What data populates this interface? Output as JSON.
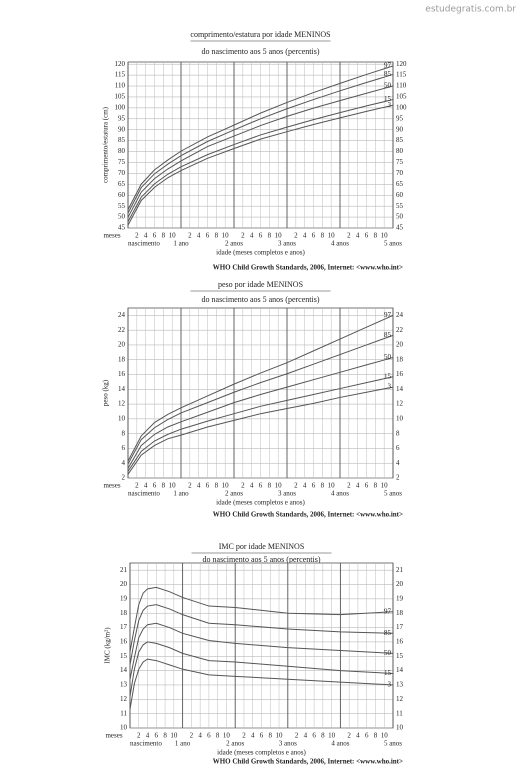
{
  "watermark": "estudegratis.com.br",
  "chart_data": [
    {
      "type": "line",
      "title": "comprimento/estatura por idade MENINOS",
      "subtitle": "do nascimento aos 5 anos (percentis)",
      "y_label": "comprimento/estatura (cm)",
      "x_label": "idade (meses completos e anos)",
      "x_unit_label": "meses",
      "source": "WHO Child Growth Standards, 2006, Internet: <www.who.int>",
      "x": [
        0,
        3,
        6,
        9,
        12,
        18,
        24,
        30,
        36,
        42,
        48,
        54,
        60
      ],
      "series": [
        {
          "name": "97",
          "color": "#555555",
          "values": [
            53.4,
            65.1,
            71.6,
            76.1,
            80.2,
            86.7,
            92.1,
            97.6,
            102.5,
            107.0,
            111.2,
            115.3,
            119.2
          ]
        },
        {
          "name": "85",
          "color": "#555555",
          "values": [
            51.8,
            63.5,
            69.8,
            74.2,
            78.1,
            84.6,
            89.9,
            95.0,
            99.6,
            103.8,
            107.8,
            111.6,
            115.3
          ]
        },
        {
          "name": "50",
          "color": "#555555",
          "values": [
            49.9,
            61.4,
            67.6,
            72.0,
            75.7,
            82.3,
            87.1,
            91.9,
            96.1,
            99.9,
            103.3,
            106.7,
            110.0
          ]
        },
        {
          "name": "15",
          "color": "#555555",
          "values": [
            47.9,
            59.1,
            65.2,
            69.6,
            73.0,
            78.6,
            83.2,
            87.6,
            91.2,
            94.6,
            97.8,
            100.9,
            103.8
          ]
        },
        {
          "name": "3",
          "color": "#555555",
          "values": [
            46.3,
            57.6,
            63.6,
            68.0,
            71.3,
            76.9,
            81.4,
            85.7,
            89.1,
            92.4,
            95.4,
            98.4,
            101.2
          ]
        }
      ],
      "xlim": [
        0,
        60
      ],
      "ylim": [
        45,
        121
      ],
      "yticks": [
        45,
        50,
        55,
        60,
        65,
        70,
        75,
        80,
        85,
        90,
        95,
        100,
        105,
        110,
        115,
        120
      ],
      "xticks": [
        2,
        4,
        6,
        8,
        10,
        {
          "value": 14,
          "label": "2"
        },
        {
          "value": 16,
          "label": "4"
        },
        {
          "value": 18,
          "label": "6"
        },
        {
          "value": 20,
          "label": "8"
        },
        {
          "value": 22,
          "label": "10"
        },
        {
          "value": 26,
          "label": "2"
        },
        {
          "value": 28,
          "label": "4"
        },
        {
          "value": 30,
          "label": "6"
        },
        {
          "value": 32,
          "label": "8"
        },
        {
          "value": 34,
          "label": "10"
        },
        {
          "value": 38,
          "label": "2"
        },
        {
          "value": 40,
          "label": "4"
        },
        {
          "value": 42,
          "label": "6"
        },
        {
          "value": 44,
          "label": "8"
        },
        {
          "value": 46,
          "label": "10"
        },
        {
          "value": 50,
          "label": "2"
        },
        {
          "value": 52,
          "label": "4"
        },
        {
          "value": 54,
          "label": "6"
        },
        {
          "value": 56,
          "label": "8"
        },
        {
          "value": 58,
          "label": "10"
        }
      ],
      "year_ticks": [
        {
          "value": 0,
          "label": "nascimento"
        },
        {
          "value": 12,
          "label": "1 ano"
        },
        {
          "value": 24,
          "label": "2 anos"
        },
        {
          "value": 36,
          "label": "3 anos"
        },
        {
          "value": 48,
          "label": "4 anos"
        },
        {
          "value": 60,
          "label": "5 anos"
        }
      ],
      "grid": true
    },
    {
      "type": "line",
      "title": "peso por idade MENINOS",
      "subtitle": "do nascimento aos 5 anos (percentis)",
      "y_label": "peso (kg)",
      "x_label": "idade (meses completos e anos)",
      "x_unit_label": "meses",
      "source": "WHO Child Growth Standards, 2006, Internet: <www.who.int>",
      "x": [
        0,
        3,
        6,
        9,
        12,
        18,
        24,
        30,
        36,
        42,
        48,
        54,
        60
      ],
      "series": [
        {
          "name": "97",
          "color": "#555555",
          "values": [
            4.3,
            7.7,
            9.5,
            10.6,
            11.5,
            13.1,
            14.7,
            16.2,
            17.6,
            19.2,
            20.8,
            22.4,
            24.0
          ]
        },
        {
          "name": "85",
          "color": "#555555",
          "values": [
            3.9,
            7.2,
            8.8,
            9.9,
            10.8,
            12.2,
            13.6,
            14.9,
            16.1,
            17.4,
            18.7,
            20.0,
            21.3
          ]
        },
        {
          "name": "50",
          "color": "#555555",
          "values": [
            3.3,
            6.4,
            7.9,
            8.9,
            9.6,
            10.9,
            12.2,
            13.3,
            14.3,
            15.3,
            16.3,
            17.3,
            18.3
          ]
        },
        {
          "name": "15",
          "color": "#555555",
          "values": [
            2.9,
            5.6,
            7.0,
            7.9,
            8.6,
            9.7,
            10.7,
            11.7,
            12.5,
            13.3,
            14.1,
            14.9,
            15.7
          ]
        },
        {
          "name": "3",
          "color": "#555555",
          "values": [
            2.5,
            5.1,
            6.4,
            7.3,
            7.8,
            8.9,
            9.8,
            10.7,
            11.4,
            12.1,
            12.9,
            13.6,
            14.3
          ]
        }
      ],
      "xlim": [
        0,
        60
      ],
      "ylim": [
        2,
        25
      ],
      "yticks": [
        2,
        4,
        6,
        8,
        10,
        12,
        14,
        16,
        18,
        20,
        22,
        24
      ],
      "xticks": [
        2,
        4,
        6,
        8,
        10,
        {
          "value": 14,
          "label": "2"
        },
        {
          "value": 16,
          "label": "4"
        },
        {
          "value": 18,
          "label": "6"
        },
        {
          "value": 20,
          "label": "8"
        },
        {
          "value": 22,
          "label": "10"
        },
        {
          "value": 26,
          "label": "2"
        },
        {
          "value": 28,
          "label": "4"
        },
        {
          "value": 30,
          "label": "6"
        },
        {
          "value": 32,
          "label": "8"
        },
        {
          "value": 34,
          "label": "10"
        },
        {
          "value": 38,
          "label": "2"
        },
        {
          "value": 40,
          "label": "4"
        },
        {
          "value": 42,
          "label": "6"
        },
        {
          "value": 44,
          "label": "8"
        },
        {
          "value": 46,
          "label": "10"
        },
        {
          "value": 50,
          "label": "2"
        },
        {
          "value": 52,
          "label": "4"
        },
        {
          "value": 54,
          "label": "6"
        },
        {
          "value": 56,
          "label": "8"
        },
        {
          "value": 58,
          "label": "10"
        }
      ],
      "year_ticks": [
        {
          "value": 0,
          "label": "nascimento"
        },
        {
          "value": 12,
          "label": "1 ano"
        },
        {
          "value": 24,
          "label": "2 anos"
        },
        {
          "value": 36,
          "label": "3 anos"
        },
        {
          "value": 48,
          "label": "4 anos"
        },
        {
          "value": 60,
          "label": "5 anos"
        }
      ],
      "grid": true
    },
    {
      "type": "line",
      "title": "IMC por idade MENINOS",
      "subtitle": "do nascimento aos 5 anos (percentis)",
      "y_label": "IMC (kg/m²)",
      "x_label": "idade (meses completos e anos)",
      "x_unit_label": "meses",
      "source": "WHO Child Growth Standards, 2006, Internet: <www.who.int>",
      "x": [
        0,
        1,
        2,
        3,
        4,
        6,
        9,
        12,
        18,
        24,
        36,
        48,
        60
      ],
      "series": [
        {
          "name": "97",
          "color": "#555555",
          "values": [
            15.3,
            17.0,
            18.6,
            19.4,
            19.7,
            19.8,
            19.5,
            19.1,
            18.5,
            18.4,
            18.0,
            17.9,
            18.1
          ]
        },
        {
          "name": "85",
          "color": "#555555",
          "values": [
            14.4,
            16.1,
            17.5,
            18.2,
            18.5,
            18.6,
            18.3,
            17.9,
            17.3,
            17.2,
            16.9,
            16.7,
            16.6
          ]
        },
        {
          "name": "50",
          "color": "#555555",
          "values": [
            13.4,
            14.9,
            16.3,
            16.9,
            17.2,
            17.3,
            17.0,
            16.6,
            16.1,
            15.9,
            15.6,
            15.4,
            15.2
          ]
        },
        {
          "name": "15",
          "color": "#555555",
          "values": [
            12.2,
            14.1,
            15.3,
            15.8,
            16.0,
            15.9,
            15.6,
            15.2,
            14.7,
            14.6,
            14.3,
            14.0,
            13.8
          ]
        },
        {
          "name": "3",
          "color": "#555555",
          "values": [
            11.3,
            13.1,
            14.1,
            14.6,
            14.8,
            14.7,
            14.4,
            14.1,
            13.7,
            13.6,
            13.4,
            13.2,
            13.0
          ]
        }
      ],
      "xlim": [
        0,
        60
      ],
      "ylim": [
        10,
        21.5
      ],
      "yticks": [
        10,
        11,
        12,
        13,
        14,
        15,
        16,
        17,
        18,
        19,
        20,
        21
      ],
      "xticks": [
        2,
        4,
        6,
        8,
        10,
        {
          "value": 14,
          "label": "2"
        },
        {
          "value": 16,
          "label": "4"
        },
        {
          "value": 18,
          "label": "6"
        },
        {
          "value": 20,
          "label": "8"
        },
        {
          "value": 22,
          "label": "10"
        },
        {
          "value": 26,
          "label": "2"
        },
        {
          "value": 28,
          "label": "4"
        },
        {
          "value": 30,
          "label": "6"
        },
        {
          "value": 32,
          "label": "8"
        },
        {
          "value": 34,
          "label": "10"
        },
        {
          "value": 38,
          "label": "2"
        },
        {
          "value": 40,
          "label": "4"
        },
        {
          "value": 42,
          "label": "6"
        },
        {
          "value": 44,
          "label": "8"
        },
        {
          "value": 46,
          "label": "10"
        },
        {
          "value": 50,
          "label": "2"
        },
        {
          "value": 52,
          "label": "4"
        },
        {
          "value": 54,
          "label": "6"
        },
        {
          "value": 56,
          "label": "8"
        },
        {
          "value": 58,
          "label": "10"
        }
      ],
      "year_ticks": [
        {
          "value": 0,
          "label": "nascimento"
        },
        {
          "value": 12,
          "label": "1 ano"
        },
        {
          "value": 24,
          "label": "2 anos"
        },
        {
          "value": 36,
          "label": "3 anos"
        },
        {
          "value": 48,
          "label": "4 anos"
        },
        {
          "value": 60,
          "label": "5 anos"
        }
      ],
      "grid": true
    }
  ]
}
